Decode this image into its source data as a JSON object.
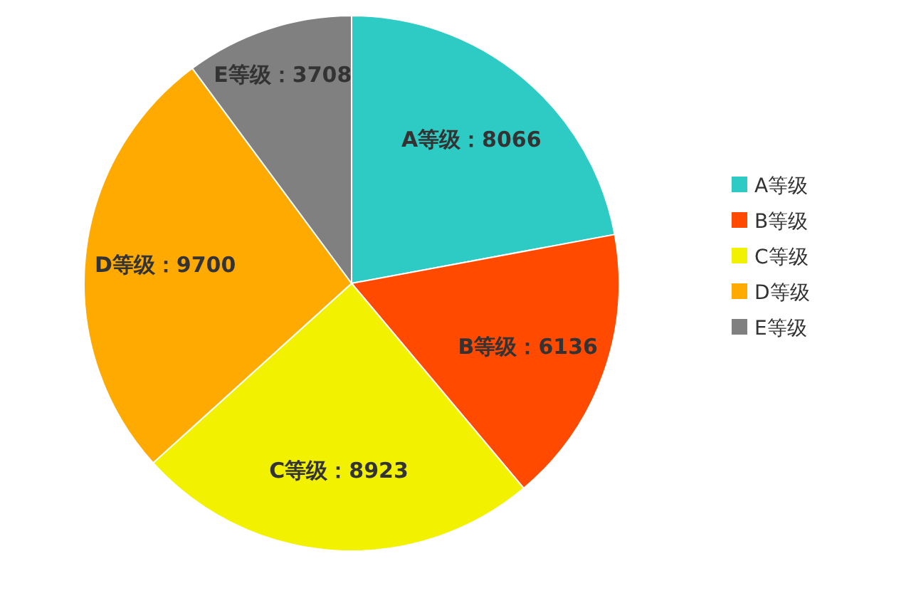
{
  "chart_data": {
    "type": "pie",
    "categories": [
      "A等级",
      "B等级",
      "C等级",
      "D等级",
      "E等级"
    ],
    "values": [
      8066,
      6136,
      8923,
      9700,
      3708
    ],
    "colors": [
      "#2ecbc4",
      "#ff4a00",
      "#f2f200",
      "#ffaa00",
      "#808080"
    ],
    "value_labels": [
      "A等级：8066",
      "B等级：6136",
      "C等级：8923",
      "D等级：9700",
      "E等级：3708"
    ],
    "legend": "right"
  }
}
